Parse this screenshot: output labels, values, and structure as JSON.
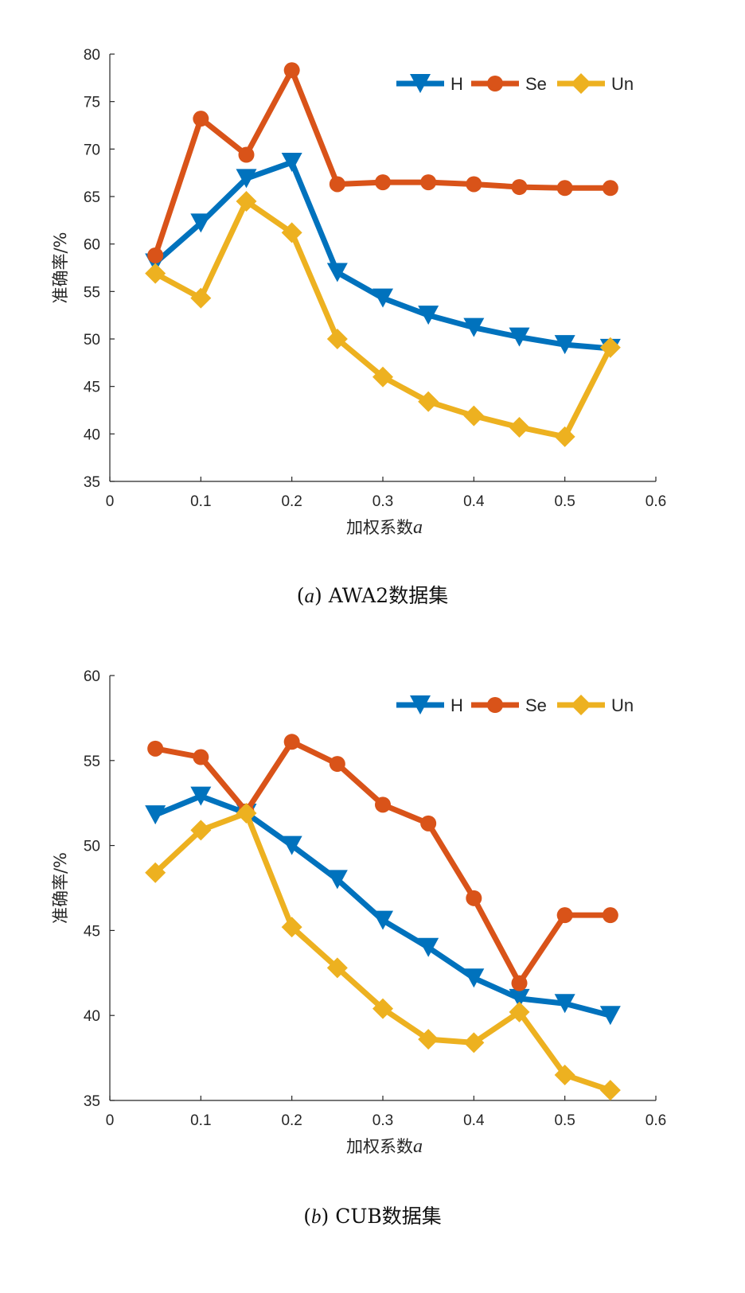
{
  "colors": {
    "H": "#0072BD",
    "Se": "#D95319",
    "Un": "#EDB120",
    "axis": "#262626"
  },
  "chart_data": [
    {
      "type": "line",
      "ylabel": "准确率/%",
      "xlabel_prefix": "加权系数",
      "xlabel_var": "a",
      "xlim": [
        0,
        0.6
      ],
      "ylim": [
        35,
        80
      ],
      "xticks": [
        0,
        0.1,
        0.2,
        0.3,
        0.4,
        0.5,
        0.6
      ],
      "xtick_labels": [
        "0",
        "0.1",
        "0.2",
        "0.3",
        "0.4",
        "0.5",
        "0.6"
      ],
      "yticks": [
        35,
        40,
        45,
        50,
        55,
        60,
        65,
        70,
        75,
        80
      ],
      "ytick_labels": [
        "35",
        "40",
        "45",
        "50",
        "55",
        "60",
        "65",
        "70",
        "75",
        "80"
      ],
      "legend_position": "top-right",
      "x": [
        0.05,
        0.1,
        0.15,
        0.2,
        0.25,
        0.3,
        0.35,
        0.4,
        0.45,
        0.5,
        0.55
      ],
      "series": [
        {
          "name": "H",
          "marker": "triangle-down",
          "values": [
            58.0,
            62.2,
            66.9,
            68.6,
            57.0,
            54.3,
            52.5,
            51.2,
            50.2,
            49.4,
            49.0
          ]
        },
        {
          "name": "Se",
          "marker": "circle",
          "values": [
            58.8,
            73.2,
            69.4,
            78.3,
            66.3,
            66.5,
            66.5,
            66.3,
            66.0,
            65.9,
            65.9
          ]
        },
        {
          "name": "Un",
          "marker": "diamond",
          "values": [
            56.9,
            54.3,
            64.5,
            61.2,
            50.0,
            46.0,
            43.4,
            41.9,
            40.7,
            39.7,
            49.1
          ]
        }
      ],
      "caption_letter": "a",
      "caption_text": "AWA2数据集"
    },
    {
      "type": "line",
      "ylabel": "准确率/%",
      "xlabel_prefix": "加权系数",
      "xlabel_var": "a",
      "xlim": [
        0,
        0.6
      ],
      "ylim": [
        35,
        60
      ],
      "xticks": [
        0,
        0.1,
        0.2,
        0.3,
        0.4,
        0.5,
        0.6
      ],
      "xtick_labels": [
        "0",
        "0.1",
        "0.2",
        "0.3",
        "0.4",
        "0.5",
        "0.6"
      ],
      "yticks": [
        35,
        40,
        45,
        50,
        55,
        60
      ],
      "ytick_labels": [
        "35",
        "40",
        "45",
        "50",
        "55",
        "60"
      ],
      "legend_position": "top-right",
      "x": [
        0.05,
        0.1,
        0.15,
        0.2,
        0.25,
        0.3,
        0.35,
        0.4,
        0.45,
        0.5,
        0.55
      ],
      "series": [
        {
          "name": "H",
          "marker": "triangle-down",
          "values": [
            51.8,
            52.9,
            51.9,
            50.0,
            48.0,
            45.6,
            44.0,
            42.2,
            41.0,
            40.7,
            40.0
          ]
        },
        {
          "name": "Se",
          "marker": "circle",
          "values": [
            55.7,
            55.2,
            52.0,
            56.1,
            54.8,
            52.4,
            51.3,
            46.9,
            41.9,
            45.9,
            45.9
          ]
        },
        {
          "name": "Un",
          "marker": "diamond",
          "values": [
            48.4,
            50.9,
            51.9,
            45.2,
            42.8,
            40.4,
            38.6,
            38.4,
            40.2,
            36.5,
            35.6
          ]
        }
      ],
      "caption_letter": "b",
      "caption_text": "CUB数据集"
    }
  ]
}
